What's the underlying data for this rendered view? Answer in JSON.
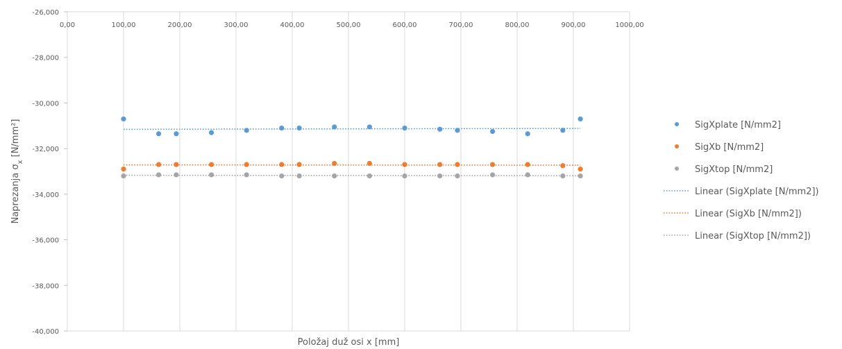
{
  "chart_data": {
    "type": "scatter",
    "title": "",
    "xlabel": "Položaj duž osi x [mm]",
    "ylabel_main": "Naprezanja σ",
    "ylabel_sub": "x",
    "ylabel_unit": " [N/mm²]",
    "xlim": [
      0,
      1000
    ],
    "ylim": [
      -40,
      -26
    ],
    "x_ticks": [
      0,
      100,
      200,
      300,
      400,
      500,
      600,
      700,
      800,
      900,
      1000
    ],
    "x_tick_labels": [
      "0,00",
      "100,00",
      "200,00",
      "300,00",
      "400,00",
      "500,00",
      "600,00",
      "700,00",
      "800,00",
      "900,00",
      "1000,00"
    ],
    "y_ticks": [
      -26,
      -28,
      -30,
      -32,
      -34,
      -36,
      -38,
      -40
    ],
    "y_tick_labels": [
      "-26,000",
      "-28,000",
      "-30,000",
      "-32,000",
      "-34,000",
      "-36,000",
      "-38,000",
      "-40,000"
    ],
    "x_axis_position": "top",
    "grid": "vertical",
    "legend_position": "right",
    "x": [
      100,
      162.5,
      193.75,
      256.25,
      318.75,
      381.25,
      412.5,
      475,
      537.5,
      600,
      662.5,
      693.75,
      756.25,
      818.75,
      881.25,
      912.5
    ],
    "series": [
      {
        "name": "SigXplate [N/mm2]",
        "color": "#5B9BD5",
        "values": [
          -30.7,
          -31.35,
          -31.35,
          -31.3,
          -31.2,
          -31.1,
          -31.1,
          -31.05,
          -31.05,
          -31.1,
          -31.15,
          -31.2,
          -31.25,
          -31.35,
          -31.2,
          -30.7
        ]
      },
      {
        "name": "SigXb [N/mm2]",
        "color": "#ED7D31",
        "values": [
          -32.9,
          -32.7,
          -32.7,
          -32.7,
          -32.7,
          -32.7,
          -32.7,
          -32.65,
          -32.65,
          -32.7,
          -32.7,
          -32.7,
          -32.7,
          -32.7,
          -32.75,
          -32.9
        ]
      },
      {
        "name": "SigXtop [N/mm2]",
        "color": "#A5A5A5",
        "values": [
          -33.2,
          -33.15,
          -33.15,
          -33.15,
          -33.15,
          -33.2,
          -33.2,
          -33.2,
          -33.2,
          -33.2,
          -33.2,
          -33.2,
          -33.15,
          -33.15,
          -33.2,
          -33.2
        ]
      }
    ],
    "trendlines": [
      {
        "name": "Linear (SigXplate [N/mm2])",
        "color": "#5B9BD5",
        "series_index": 0
      },
      {
        "name": "Linear (SigXb [N/mm2])",
        "color": "#ED7D31",
        "series_index": 1
      },
      {
        "name": "Linear (SigXtop [N/mm2])",
        "color": "#A5A5A5",
        "series_index": 2
      }
    ]
  }
}
